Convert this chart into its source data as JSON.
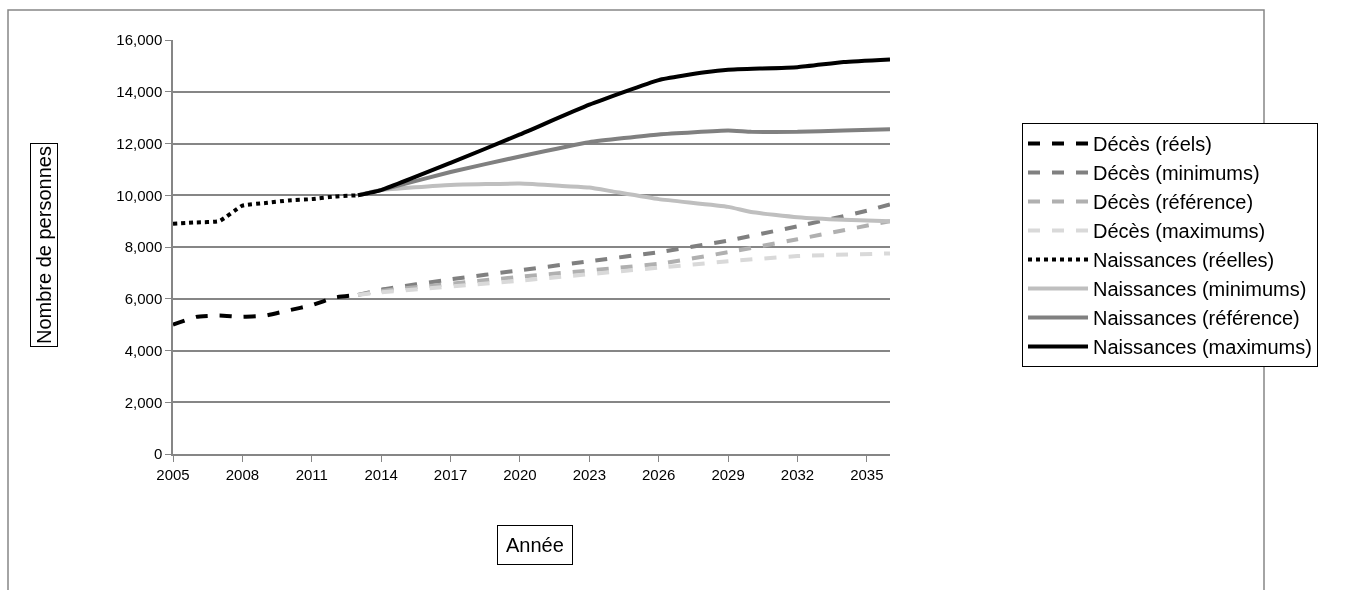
{
  "chart_data": {
    "type": "line",
    "xlabel": "Année",
    "ylabel": "Nombre de personnes",
    "xlim": [
      2005,
      2036
    ],
    "xticks": [
      2005,
      2008,
      2011,
      2014,
      2017,
      2020,
      2023,
      2026,
      2029,
      2032,
      2035
    ],
    "ylim": [
      0,
      16000
    ],
    "yticks": [
      {
        "value": 0,
        "label": "0"
      },
      {
        "value": 2000,
        "label": "2,000"
      },
      {
        "value": 4000,
        "label": "4,000"
      },
      {
        "value": 6000,
        "label": "6,000"
      },
      {
        "value": 8000,
        "label": "8,000"
      },
      {
        "value": 10000,
        "label": "10,000"
      },
      {
        "value": 12000,
        "label": "12,000"
      },
      {
        "value": 14000,
        "label": "14,000"
      },
      {
        "value": 16000,
        "label": "16,000"
      }
    ],
    "grid": "y",
    "legend": "right",
    "marker": "none",
    "series": [
      {
        "name": "Décès (réels)",
        "color": "#000000",
        "line_style": "dashed",
        "x": [
          2005,
          2006,
          2007,
          2008,
          2009,
          2010,
          2011,
          2012,
          2013
        ],
        "values": [
          5000,
          5300,
          5350,
          5300,
          5350,
          5550,
          5750,
          6050,
          6150
        ]
      },
      {
        "name": "Décès (minimums)",
        "color": "#808080",
        "line_style": "dashed",
        "x": [
          2013,
          2014,
          2017,
          2020,
          2023,
          2026,
          2029,
          2032,
          2035,
          2036
        ],
        "values": [
          6150,
          6350,
          6750,
          7100,
          7450,
          7800,
          8250,
          8800,
          9400,
          9650
        ]
      },
      {
        "name": "Décès (référence)",
        "color": "#b0b0b0",
        "line_style": "dashed",
        "x": [
          2013,
          2014,
          2020,
          2026,
          2029,
          2032,
          2036
        ],
        "values": [
          6150,
          6300,
          6850,
          7350,
          7800,
          8300,
          9000
        ]
      },
      {
        "name": "Décès (maximums)",
        "color": "#d9d9d9",
        "line_style": "dashed",
        "x": [
          2013,
          2014,
          2020,
          2026,
          2029,
          2032,
          2036
        ],
        "values": [
          6150,
          6250,
          6700,
          7200,
          7450,
          7650,
          7750
        ]
      },
      {
        "name": "Naissances (réelles)",
        "color": "#000000",
        "line_style": "dotted",
        "x": [
          2005,
          2006,
          2007,
          2008,
          2009,
          2010,
          2011,
          2012,
          2013
        ],
        "values": [
          8900,
          8950,
          9000,
          9600,
          9700,
          9800,
          9850,
          9950,
          10000
        ]
      },
      {
        "name": "Naissances (minimums)",
        "color": "#bfbfbf",
        "line_style": "solid",
        "x": [
          2013,
          2014,
          2017,
          2020,
          2022,
          2023,
          2024,
          2026,
          2029,
          2030,
          2032,
          2034,
          2036
        ],
        "values": [
          10000,
          10200,
          10400,
          10450,
          10350,
          10300,
          10150,
          9850,
          9550,
          9350,
          9150,
          9050,
          9000
        ]
      },
      {
        "name": "Naissances (référence)",
        "color": "#808080",
        "line_style": "solid",
        "x": [
          2013,
          2014,
          2017,
          2020,
          2023,
          2026,
          2029,
          2030,
          2032,
          2034,
          2036
        ],
        "values": [
          10000,
          10200,
          10900,
          11500,
          12050,
          12350,
          12500,
          12450,
          12450,
          12500,
          12550
        ]
      },
      {
        "name": "Naissances (maximums)",
        "color": "#000000",
        "line_style": "solid",
        "x": [
          2013,
          2014,
          2017,
          2020,
          2023,
          2026,
          2028,
          2029,
          2032,
          2034,
          2036
        ],
        "values": [
          10000,
          10200,
          11250,
          12350,
          13500,
          14450,
          14750,
          14850,
          14950,
          15150,
          15250
        ]
      }
    ]
  }
}
